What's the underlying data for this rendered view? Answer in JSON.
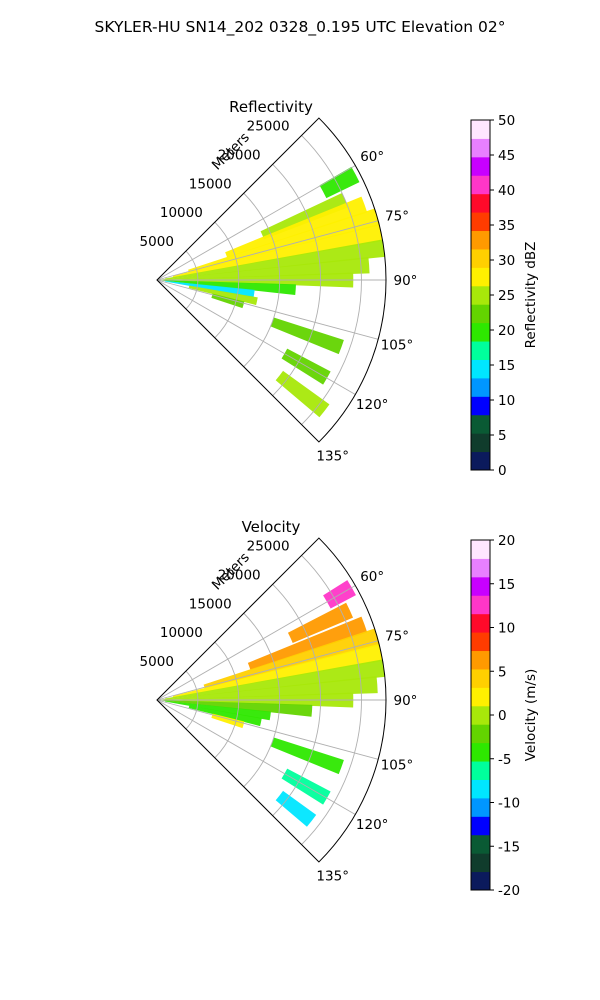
{
  "figure": {
    "title": "SKYLER-HU  SN14_202  0328_0.195 UTC Elevation 02°"
  },
  "chart_data": [
    {
      "type": "heatmap",
      "projection": "polar-sector",
      "title": "Reflectivity",
      "range_axis_label": "Meters",
      "range_ticks": [
        "5000",
        "10000",
        "15000",
        "20000",
        "25000"
      ],
      "range_values": [
        5000,
        10000,
        15000,
        20000,
        25000
      ],
      "range_max": 28000,
      "azimuth_ticks": [
        "60°",
        "75°",
        "90°",
        "105°",
        "120°",
        "135°"
      ],
      "azimuth_values": [
        60,
        75,
        90,
        105,
        120,
        135
      ],
      "azimuth_range": [
        45,
        135
      ],
      "grid": true,
      "colorbar": {
        "label": "Reflectivity dBZ",
        "min": 0,
        "max": 50,
        "ticks": [
          "0",
          "5",
          "10",
          "15",
          "20",
          "25",
          "30",
          "35",
          "40",
          "45",
          "50"
        ],
        "colors": [
          "#0b1a5c",
          "#103c2c",
          "#0a5a34",
          "#0000ff",
          "#0096ff",
          "#00e6ff",
          "#00ff9c",
          "#2ee800",
          "#63d400",
          "#a8e80a",
          "#fff000",
          "#ffd000",
          "#ff9a00",
          "#ff3c00",
          "#ff0a2a",
          "#ff36c8",
          "#c800ff",
          "#e880ff",
          "#ffe6ff"
        ]
      },
      "echoes": [
        {
          "az": 62,
          "r0": 23000,
          "r1": 27500,
          "val": 20
        },
        {
          "az": 67,
          "r0": 14000,
          "r1": 25000,
          "val": 24
        },
        {
          "az": 70,
          "r0": 9000,
          "r1": 27000,
          "val": 27
        },
        {
          "az": 74,
          "r0": 4000,
          "r1": 28000,
          "val": 28
        },
        {
          "az": 78,
          "r0": 2000,
          "r1": 28000,
          "val": 27
        },
        {
          "az": 82,
          "r0": 1000,
          "r1": 28000,
          "val": 26
        },
        {
          "az": 86,
          "r0": 500,
          "r1": 26000,
          "val": 25
        },
        {
          "az": 90,
          "r0": 500,
          "r1": 24000,
          "val": 24
        },
        {
          "az": 94,
          "r0": 500,
          "r1": 17000,
          "val": 20
        },
        {
          "az": 98,
          "r0": 1000,
          "r1": 12000,
          "val": 15
        },
        {
          "az": 102,
          "r0": 4000,
          "r1": 12500,
          "val": 24
        },
        {
          "az": 106,
          "r0": 7000,
          "r1": 11000,
          "val": 22
        },
        {
          "az": 110,
          "r0": 15000,
          "r1": 24000,
          "val": 23
        },
        {
          "az": 120,
          "r0": 18000,
          "r1": 24000,
          "val": 22
        },
        {
          "az": 128,
          "r0": 19000,
          "r1": 26000,
          "val": 24
        }
      ]
    },
    {
      "type": "heatmap",
      "projection": "polar-sector",
      "title": "Velocity",
      "range_axis_label": "Meters",
      "range_ticks": [
        "5000",
        "10000",
        "15000",
        "20000",
        "25000"
      ],
      "range_values": [
        5000,
        10000,
        15000,
        20000,
        25000
      ],
      "range_max": 28000,
      "azimuth_ticks": [
        "60°",
        "75°",
        "90°",
        "105°",
        "120°",
        "135°"
      ],
      "azimuth_values": [
        60,
        75,
        90,
        105,
        120,
        135
      ],
      "azimuth_range": [
        45,
        135
      ],
      "grid": true,
      "colorbar": {
        "label": "Velocity (m/s)",
        "min": -20,
        "max": 20,
        "ticks": [
          "-20",
          "-15",
          "-10",
          "-5",
          "0",
          "5",
          "10",
          "15",
          "20"
        ],
        "colors": [
          "#0b1a5c",
          "#103c2c",
          "#0a5a34",
          "#0000ff",
          "#0096ff",
          "#00e6ff",
          "#00ff9c",
          "#2ee800",
          "#63d400",
          "#a8e80a",
          "#fff000",
          "#ffd000",
          "#ff9a00",
          "#ff3c00",
          "#ff0a2a",
          "#ff36c8",
          "#c800ff",
          "#e880ff",
          "#ffe6ff"
        ]
      },
      "echoes": [
        {
          "az": 60,
          "r0": 24000,
          "r1": 27500,
          "val": 12
        },
        {
          "az": 65,
          "r0": 18000,
          "r1": 26000,
          "val": 7
        },
        {
          "az": 70,
          "r0": 12000,
          "r1": 27000,
          "val": 6
        },
        {
          "az": 74,
          "r0": 6000,
          "r1": 28000,
          "val": 5
        },
        {
          "az": 78,
          "r0": 2000,
          "r1": 28000,
          "val": 3
        },
        {
          "az": 82,
          "r0": 1000,
          "r1": 28000,
          "val": 1
        },
        {
          "az": 86,
          "r0": 500,
          "r1": 27000,
          "val": 0
        },
        {
          "az": 90,
          "r0": 500,
          "r1": 24000,
          "val": -1
        },
        {
          "az": 94,
          "r0": 500,
          "r1": 19000,
          "val": -3
        },
        {
          "az": 98,
          "r0": 1000,
          "r1": 14000,
          "val": -4
        },
        {
          "az": 102,
          "r0": 4000,
          "r1": 13000,
          "val": -5
        },
        {
          "az": 106,
          "r0": 7000,
          "r1": 11000,
          "val": 2
        },
        {
          "az": 110,
          "r0": 15000,
          "r1": 24000,
          "val": -5
        },
        {
          "az": 120,
          "r0": 18000,
          "r1": 24000,
          "val": -6
        },
        {
          "az": 128,
          "r0": 19000,
          "r1": 24000,
          "val": -9
        }
      ]
    }
  ]
}
